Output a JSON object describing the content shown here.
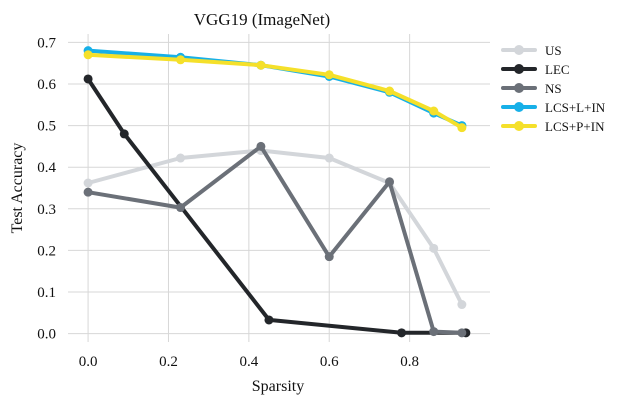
{
  "chart_data": {
    "type": "line",
    "title": "VGG19 (ImageNet)",
    "xlabel": "Sparsity",
    "ylabel": "Test Accuracy",
    "xlim": [
      -0.05,
      1.0
    ],
    "ylim": [
      -0.02,
      0.72
    ],
    "xticks": [
      0.0,
      0.2,
      0.4,
      0.6,
      0.8
    ],
    "xtick_labels": [
      "0.0",
      "0.2",
      "0.4",
      "0.6",
      "0.8"
    ],
    "yticks": [
      0.0,
      0.1,
      0.2,
      0.3,
      0.4,
      0.5,
      0.6,
      0.7
    ],
    "ytick_labels": [
      "0.0",
      "0.1",
      "0.2",
      "0.3",
      "0.4",
      "0.5",
      "0.6",
      "0.7"
    ],
    "grid": true,
    "legend_position": "top-right-outside",
    "series": [
      {
        "name": "US",
        "color": "#d3d6da",
        "marker": "circle",
        "x": [
          0.0,
          0.23,
          0.43,
          0.6,
          0.75,
          0.86,
          0.93
        ],
        "y": [
          0.362,
          0.422,
          0.44,
          0.422,
          0.362,
          0.205,
          0.07
        ]
      },
      {
        "name": "LEC",
        "color": "#23262a",
        "marker": "circle",
        "x": [
          0.0,
          0.09,
          0.45,
          0.78,
          0.94
        ],
        "y": [
          0.612,
          0.48,
          0.033,
          0.002,
          0.002
        ]
      },
      {
        "name": "NS",
        "color": "#6b7078",
        "marker": "circle",
        "x": [
          0.0,
          0.23,
          0.43,
          0.6,
          0.75,
          0.86,
          0.93
        ],
        "y": [
          0.34,
          0.303,
          0.45,
          0.185,
          0.365,
          0.005,
          0.002
        ]
      },
      {
        "name": "LCS+L+IN",
        "color": "#17b0e8",
        "marker": "circle",
        "x": [
          0.0,
          0.23,
          0.43,
          0.6,
          0.75,
          0.86,
          0.93
        ],
        "y": [
          0.68,
          0.664,
          0.645,
          0.618,
          0.58,
          0.53,
          0.5
        ]
      },
      {
        "name": "LCS+P+IN",
        "color": "#f5e02a",
        "marker": "circle",
        "x": [
          0.0,
          0.23,
          0.43,
          0.6,
          0.75,
          0.86,
          0.93
        ],
        "y": [
          0.67,
          0.658,
          0.645,
          0.622,
          0.583,
          0.535,
          0.495
        ]
      }
    ]
  }
}
